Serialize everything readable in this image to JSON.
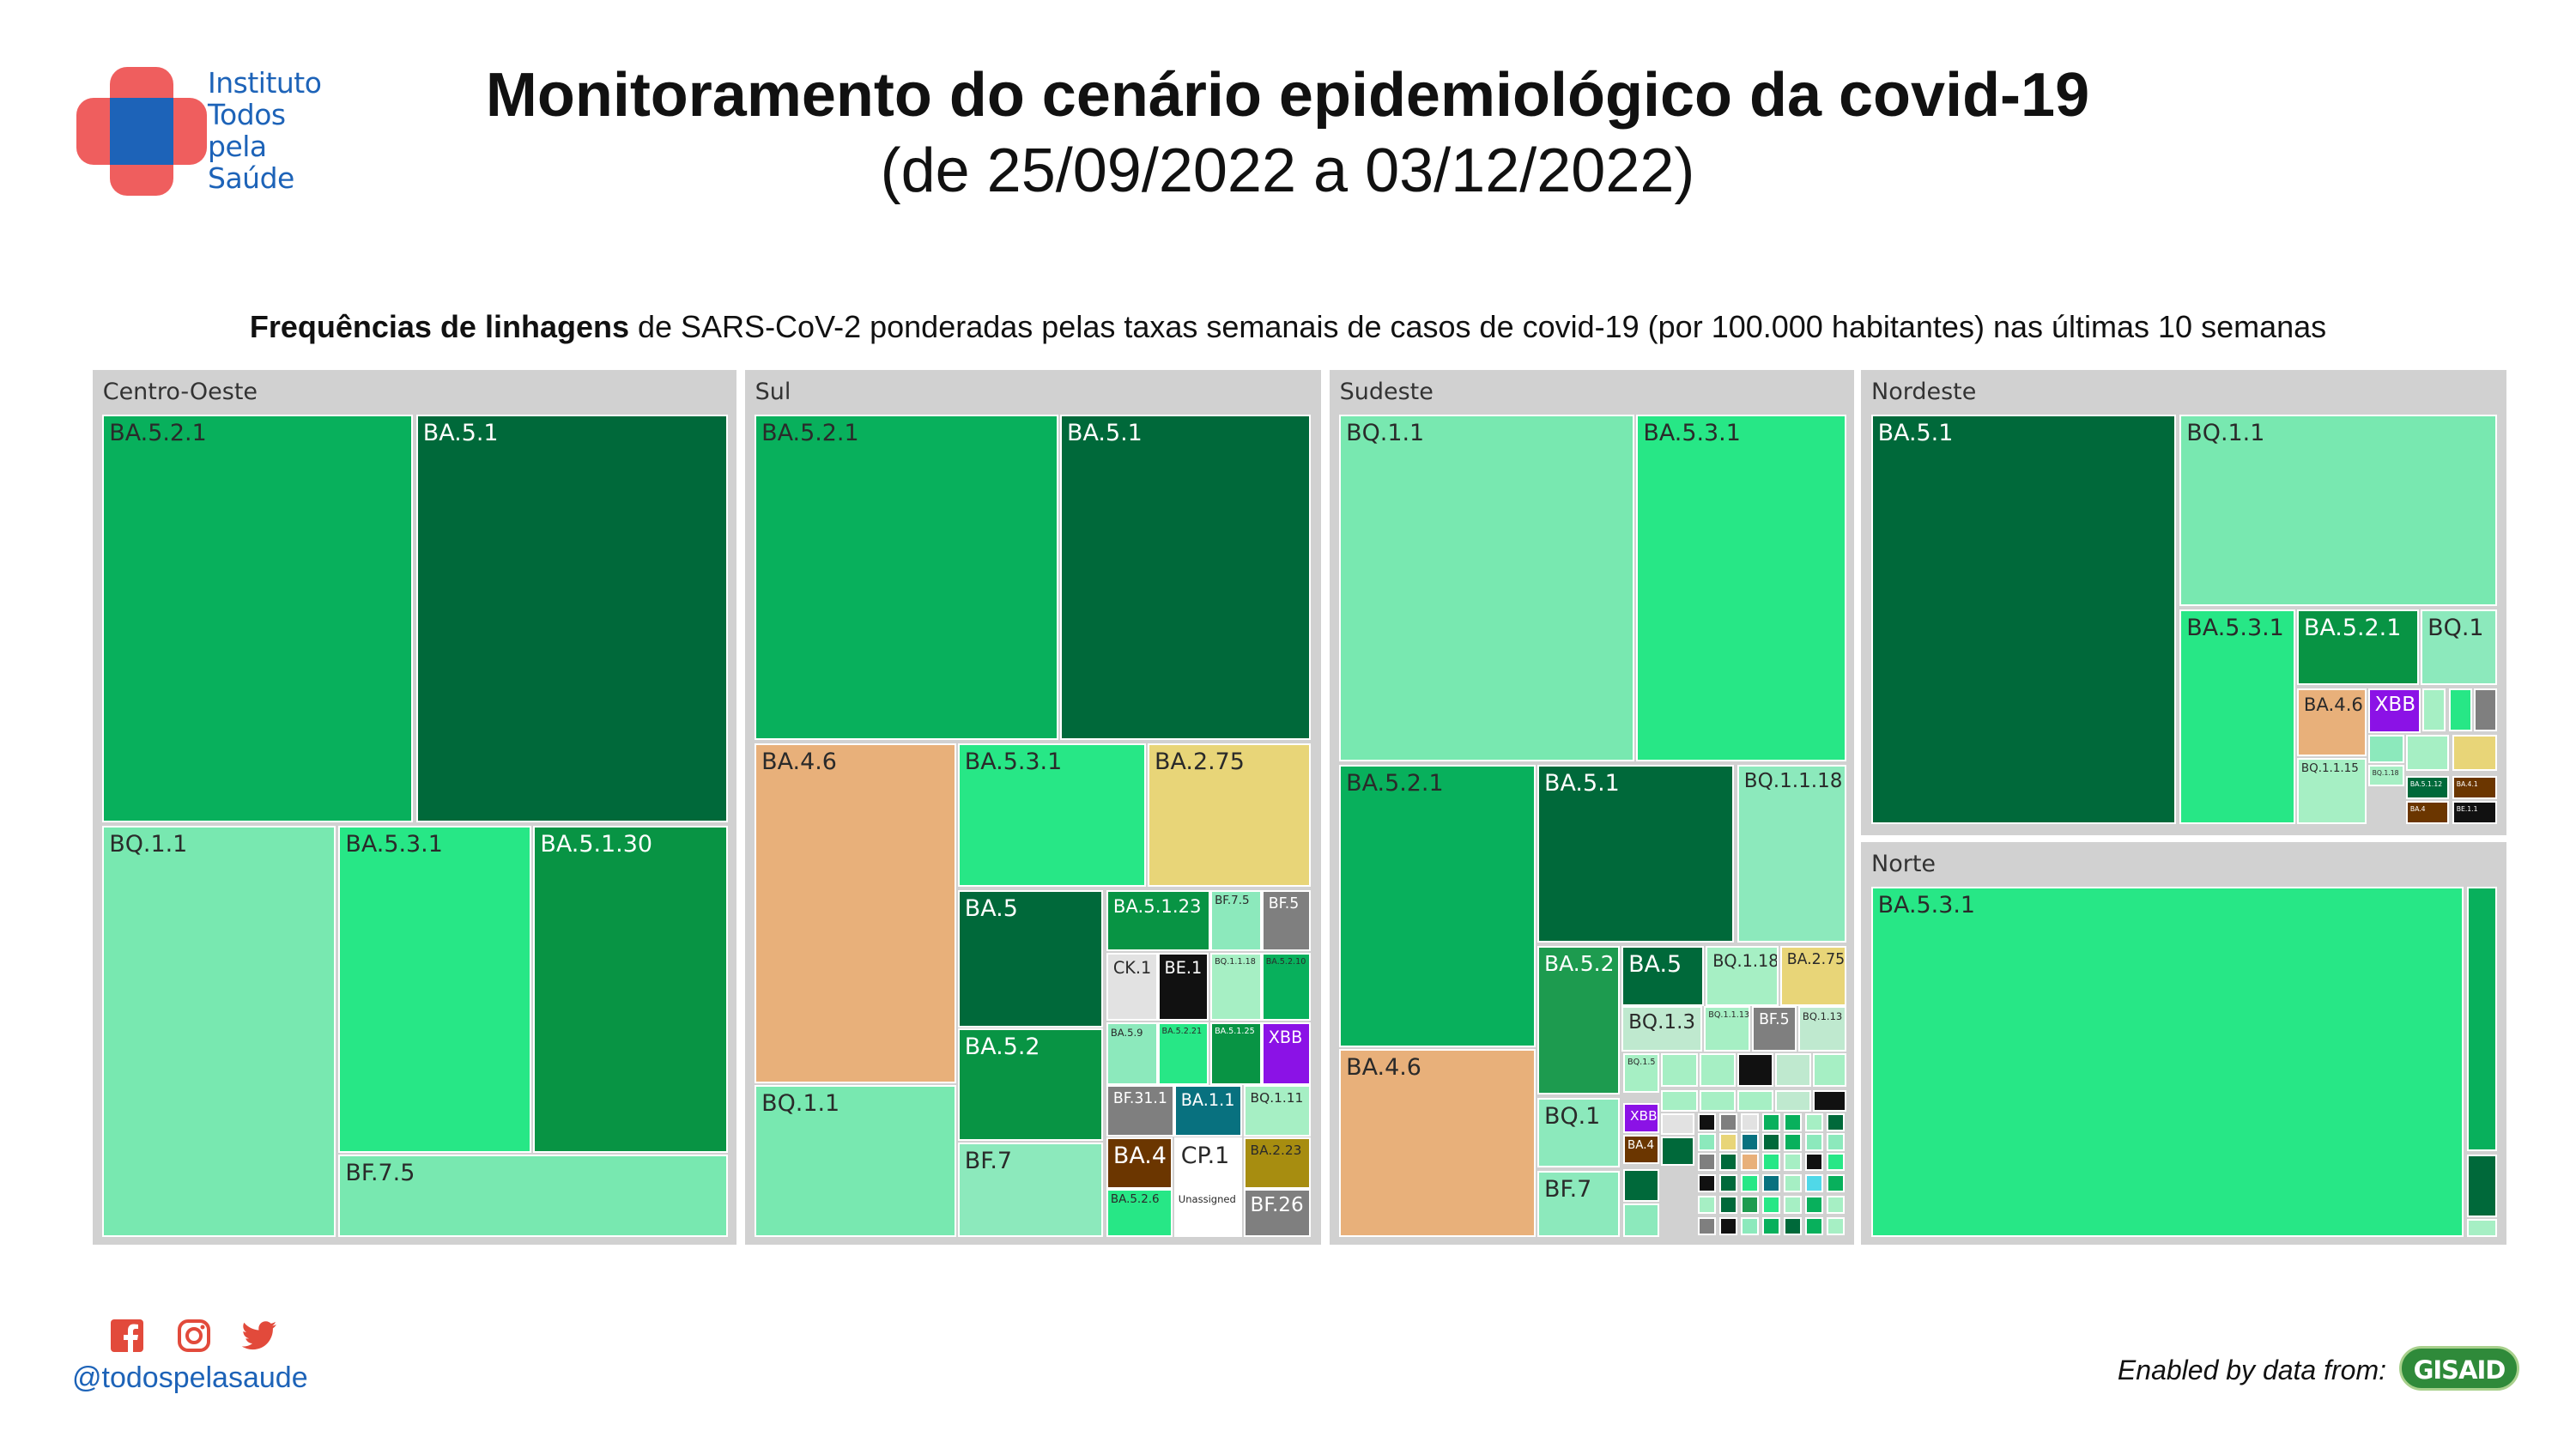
{
  "logo": {
    "lines": [
      "Instituto",
      "Todos",
      "pela",
      "Saúde"
    ],
    "colors": {
      "cross": "#ef5e5e",
      "center": "#1d63b8"
    }
  },
  "header": {
    "title": "Monitoramento do cenário epidemiológico da covid-19",
    "date_range": "(de 25/09/2022 a 03/12/2022)"
  },
  "chart_subtitle": {
    "bold": "Frequências de linhagens",
    "rest": " de SARS-CoV-2 ponderadas pelas taxas semanais de casos de covid-19 (por 100.000 habitantes) nas últimas 10 semanas"
  },
  "chart_data": {
    "type": "treemap",
    "title": "Frequências de linhagens de SARS-CoV-2 ponderadas pelas taxas semanais de casos de covid-19 (por 100.000 habitantes) nas últimas 10 semanas",
    "regions": [
      {
        "name": "Centro-Oeste",
        "lineages": [
          "BA.5.2.1",
          "BA.5.1",
          "BQ.1.1",
          "BA.5.3.1",
          "BA.5.1.30",
          "BF.7.5"
        ]
      },
      {
        "name": "Sul",
        "lineages": [
          "BA.5.2.1",
          "BA.5.1",
          "BA.4.6",
          "BA.5.3.1",
          "BA.2.75",
          "BA.5",
          "BA.5.1.23",
          "BF.7.5",
          "BF.5",
          "CK.1",
          "BE.1",
          "BQ.1.1.18",
          "BA.5.2.10",
          "BA.5.9",
          "BA.5.2.21",
          "BA.5.1.25",
          "XBB",
          "BF.31.1",
          "BA.1.1",
          "BQ.1.11",
          "BA.5.2",
          "BF.7",
          "BA.4",
          "CP.1",
          "BA.2.23",
          "BA.5.2.6",
          "Unassigned",
          "BF.26",
          "BQ.1.1"
        ]
      },
      {
        "name": "Sudeste",
        "lineages": [
          "BQ.1.1",
          "BA.5.3.1",
          "BA.5.2.1",
          "BA.5.1",
          "BQ.1.1.18",
          "BA.5.2",
          "BA.5",
          "BQ.1.18",
          "BA.2.75",
          "BQ.1.3",
          "BQ.1.1.13",
          "BF.5",
          "BQ.1.13",
          "XBB",
          "BA.4",
          "BA.4.6",
          "BQ.1",
          "BF.7",
          "BQ.1.5"
        ]
      },
      {
        "name": "Nordeste",
        "lineages": [
          "BA.5.1",
          "BQ.1.1",
          "BA.5.3.1",
          "BA.5.2.1",
          "BQ.1",
          "BA.4.6",
          "XBB",
          "BQ.1.1.15",
          "BQ.1.18",
          "BA.5.1.12",
          "BA.4.1",
          "BA.4",
          "BE.1.1"
        ]
      },
      {
        "name": "Norte",
        "lineages": [
          "BA.5.3.1"
        ]
      }
    ]
  },
  "footer": {
    "handle": "@todospelasaude",
    "enabled_by": "Enabled by data from:",
    "gisaid_label": "GISAID",
    "social_icons": [
      "facebook-icon",
      "instagram-icon",
      "twitter-icon"
    ],
    "colors": {
      "handle": "#1d63b8",
      "icons": "#e24a3b",
      "gisaid": "#2f8a3a"
    }
  }
}
